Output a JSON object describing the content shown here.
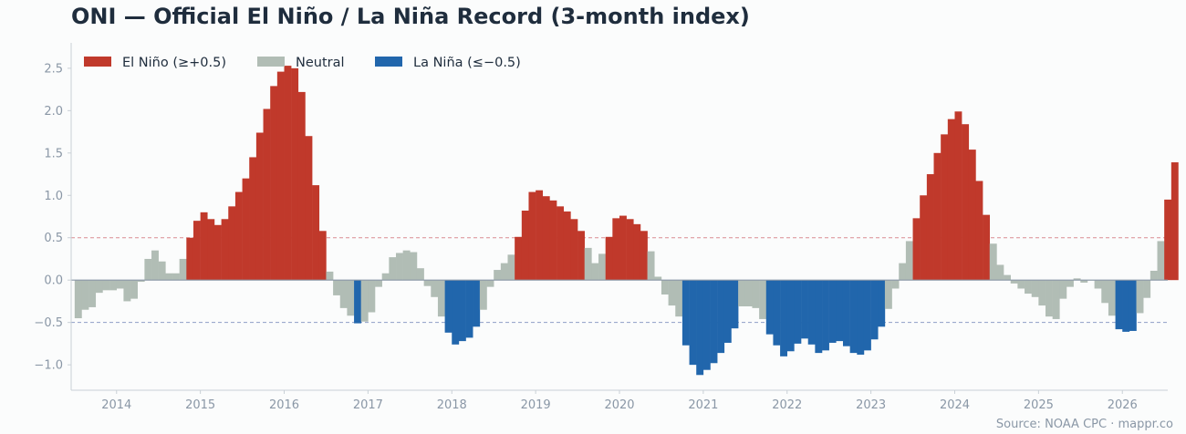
{
  "title": "ONI — Official El Niño / La Niña Record (3-month index)",
  "source": "Source: NOAA CPC  ·  mappr.co",
  "colors": {
    "el_nino": "#c0392b",
    "neutral": "#b1bdb5",
    "la_nina": "#2166ac",
    "el_nino_line": "#d98b92",
    "la_nina_line": "#8e9fc6",
    "zero_line": "#8a97a6",
    "axis": "#c9d0d6",
    "tick_text": "#8a97a6"
  },
  "chart_data": {
    "type": "bar",
    "title": "ONI — Official El Niño / La Niña Record (3-month index)",
    "xlabel": "",
    "ylabel": "",
    "x_start": "2013-07",
    "x_interval": "1 month",
    "x_ticks": [
      "2014",
      "2015",
      "2016",
      "2017",
      "2018",
      "2019",
      "2020",
      "2021",
      "2022",
      "2023",
      "2024",
      "2025",
      "2026"
    ],
    "y_ticks": [
      "−1.0",
      "−0.5",
      "0.0",
      "0.5",
      "1.0",
      "1.5",
      "2.0",
      "2.5"
    ],
    "ylim": [
      -1.3,
      2.8
    ],
    "xlim": [
      "2013-06",
      "2026-07"
    ],
    "grid": false,
    "thresholds": [
      0.5,
      -0.5
    ],
    "legend_position": "top-left",
    "legend": [
      {
        "key": "el_nino",
        "label": "El Niño (≥+0.5)"
      },
      {
        "key": "neutral",
        "label": "Neutral"
      },
      {
        "key": "la_nina",
        "label": "La Niña (≤−0.5)"
      }
    ],
    "values": [
      -0.45,
      -0.35,
      -0.32,
      -0.15,
      -0.12,
      -0.12,
      -0.1,
      -0.25,
      -0.22,
      -0.02,
      0.25,
      0.35,
      0.22,
      0.08,
      0.08,
      0.25,
      0.5,
      0.7,
      0.8,
      0.72,
      0.65,
      0.72,
      0.87,
      1.04,
      1.2,
      1.45,
      1.74,
      2.02,
      2.29,
      2.46,
      2.53,
      2.5,
      2.22,
      1.7,
      1.12,
      0.58,
      0.1,
      -0.18,
      -0.33,
      -0.42,
      -0.51,
      -0.49,
      -0.38,
      -0.08,
      0.08,
      0.27,
      0.32,
      0.35,
      0.33,
      0.14,
      -0.07,
      -0.2,
      -0.43,
      -0.62,
      -0.76,
      -0.72,
      -0.68,
      -0.55,
      -0.35,
      -0.08,
      0.12,
      0.2,
      0.3,
      0.51,
      0.82,
      1.04,
      1.06,
      0.99,
      0.94,
      0.87,
      0.81,
      0.72,
      0.58,
      0.38,
      0.2,
      0.31,
      0.51,
      0.73,
      0.76,
      0.72,
      0.66,
      0.58,
      0.34,
      0.04,
      -0.17,
      -0.3,
      -0.43,
      -0.77,
      -1.0,
      -1.12,
      -1.06,
      -0.98,
      -0.86,
      -0.74,
      -0.57,
      -0.31,
      -0.31,
      -0.33,
      -0.46,
      -0.64,
      -0.77,
      -0.9,
      -0.84,
      -0.75,
      -0.69,
      -0.76,
      -0.86,
      -0.83,
      -0.74,
      -0.72,
      -0.78,
      -0.86,
      -0.88,
      -0.83,
      -0.7,
      -0.55,
      -0.34,
      -0.1,
      0.2,
      0.46,
      0.73,
      1.0,
      1.25,
      1.5,
      1.72,
      1.9,
      1.99,
      1.84,
      1.54,
      1.17,
      0.77,
      0.43,
      0.18,
      0.06,
      -0.04,
      -0.1,
      -0.16,
      -0.2,
      -0.3,
      -0.43,
      -0.46,
      -0.22,
      -0.08,
      0.02,
      -0.03,
      0.0,
      -0.1,
      -0.27,
      -0.42,
      -0.58,
      -0.61,
      -0.6,
      -0.39,
      -0.21,
      0.11,
      0.46,
      0.95,
      1.39
    ]
  }
}
